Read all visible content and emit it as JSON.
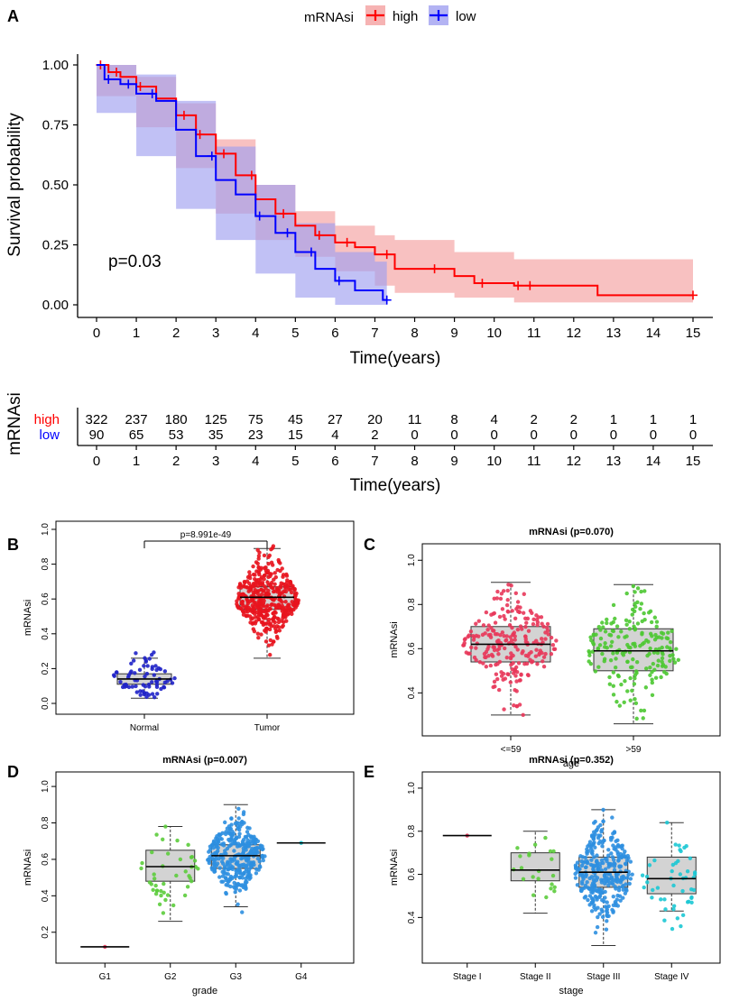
{
  "chart_data": [
    {
      "panel": "A",
      "type": "line",
      "subtype": "kaplan-meier",
      "legend_title": "mRNAsi",
      "legend_position": "top",
      "xlabel": "Time(years)",
      "ylabel": "Survival probability",
      "xlim": [
        0,
        15
      ],
      "ylim": [
        0,
        1
      ],
      "x_ticks": [
        "0",
        "1",
        "2",
        "3",
        "4",
        "5",
        "6",
        "7",
        "8",
        "9",
        "10",
        "11",
        "12",
        "13",
        "14",
        "15"
      ],
      "y_ticks": [
        "0.00",
        "0.25",
        "0.50",
        "0.75",
        "1.00"
      ],
      "annotation": "p=0.03",
      "series": [
        {
          "name": "high",
          "color": "#ff0000",
          "fill": "#f4a0a0",
          "points": [
            [
              0,
              1.0
            ],
            [
              0.3,
              0.97
            ],
            [
              0.6,
              0.95
            ],
            [
              1.0,
              0.91
            ],
            [
              1.5,
              0.86
            ],
            [
              2.0,
              0.79
            ],
            [
              2.5,
              0.71
            ],
            [
              3.0,
              0.63
            ],
            [
              3.5,
              0.54
            ],
            [
              4.0,
              0.44
            ],
            [
              4.5,
              0.38
            ],
            [
              5.0,
              0.33
            ],
            [
              5.5,
              0.29
            ],
            [
              6.0,
              0.26
            ],
            [
              6.5,
              0.24
            ],
            [
              7.0,
              0.21
            ],
            [
              7.5,
              0.15
            ],
            [
              9.0,
              0.12
            ],
            [
              9.5,
              0.09
            ],
            [
              10.5,
              0.08
            ],
            [
              12.6,
              0.04
            ],
            [
              15.0,
              0.04
            ]
          ],
          "upper": [
            [
              0,
              1.0
            ],
            [
              1.0,
              0.95
            ],
            [
              2.0,
              0.84
            ],
            [
              3.0,
              0.69
            ],
            [
              4.0,
              0.5
            ],
            [
              5.0,
              0.39
            ],
            [
              6.0,
              0.33
            ],
            [
              7.0,
              0.29
            ],
            [
              7.5,
              0.27
            ],
            [
              9.0,
              0.22
            ],
            [
              10.5,
              0.19
            ],
            [
              12.6,
              0.19
            ],
            [
              15.0,
              0.19
            ]
          ],
          "lower": [
            [
              0,
              0.97
            ],
            [
              1.0,
              0.87
            ],
            [
              2.0,
              0.74
            ],
            [
              3.0,
              0.57
            ],
            [
              4.0,
              0.38
            ],
            [
              5.0,
              0.27
            ],
            [
              6.0,
              0.2
            ],
            [
              7.0,
              0.14
            ],
            [
              7.5,
              0.08
            ],
            [
              9.0,
              0.05
            ],
            [
              10.5,
              0.03
            ],
            [
              12.6,
              0.01
            ],
            [
              15.0,
              0.01
            ]
          ],
          "censor_x": [
            0.1,
            0.5,
            1.1,
            2.2,
            2.6,
            3.2,
            3.9,
            4.7,
            5.6,
            6.3,
            7.3,
            8.5,
            9.7,
            10.6,
            10.9,
            15.0
          ]
        },
        {
          "name": "low",
          "color": "#0000ff",
          "fill": "#a0a0f0",
          "points": [
            [
              0,
              1.0
            ],
            [
              0.2,
              0.94
            ],
            [
              0.6,
              0.92
            ],
            [
              1.0,
              0.88
            ],
            [
              1.5,
              0.85
            ],
            [
              2.0,
              0.73
            ],
            [
              2.5,
              0.62
            ],
            [
              3.0,
              0.52
            ],
            [
              3.5,
              0.46
            ],
            [
              4.0,
              0.37
            ],
            [
              4.5,
              0.3
            ],
            [
              5.0,
              0.22
            ],
            [
              5.5,
              0.15
            ],
            [
              6.0,
              0.1
            ],
            [
              6.5,
              0.06
            ],
            [
              7.0,
              0.06
            ],
            [
              7.2,
              0.02
            ],
            [
              7.3,
              0.02
            ]
          ],
          "upper": [
            [
              0,
              1.0
            ],
            [
              1.0,
              0.96
            ],
            [
              2.0,
              0.85
            ],
            [
              3.0,
              0.66
            ],
            [
              4.0,
              0.5
            ],
            [
              5.0,
              0.34
            ],
            [
              6.0,
              0.22
            ],
            [
              7.0,
              0.18
            ],
            [
              7.3,
              0.15
            ]
          ],
          "lower": [
            [
              0,
              0.88
            ],
            [
              1.0,
              0.8
            ],
            [
              2.0,
              0.62
            ],
            [
              3.0,
              0.4
            ],
            [
              4.0,
              0.27
            ],
            [
              5.0,
              0.13
            ],
            [
              6.0,
              0.03
            ],
            [
              7.0,
              0.0
            ],
            [
              7.3,
              0.0
            ]
          ],
          "censor_x": [
            0.3,
            0.8,
            1.4,
            2.9,
            4.1,
            4.8,
            5.4,
            6.1,
            7.3
          ]
        }
      ]
    },
    {
      "panel": "A-risk",
      "type": "table",
      "ylabel": "mRNAsi",
      "xlabel": "Time(years)",
      "x_ticks": [
        "0",
        "1",
        "2",
        "3",
        "4",
        "5",
        "6",
        "7",
        "8",
        "9",
        "10",
        "11",
        "12",
        "13",
        "14",
        "15"
      ],
      "rows": [
        {
          "name": "high",
          "color": "#ff0000",
          "values": [
            "322",
            "237",
            "180",
            "125",
            "75",
            "45",
            "27",
            "20",
            "11",
            "8",
            "4",
            "2",
            "2",
            "1",
            "1",
            "1"
          ]
        },
        {
          "name": "low",
          "color": "#0000ff",
          "values": [
            "90",
            "65",
            "53",
            "35",
            "23",
            "15",
            "4",
            "2",
            "0",
            "0",
            "0",
            "0",
            "0",
            "0",
            "0",
            "0"
          ]
        }
      ]
    },
    {
      "panel": "B",
      "type": "scatter",
      "subtype": "box-beeswarm",
      "title": "",
      "ylabel": "mRNAsi",
      "xlabel": "",
      "ylim": [
        0,
        1
      ],
      "y_ticks": [
        "0.0",
        "0.2",
        "0.4",
        "0.6",
        "0.8",
        "1.0"
      ],
      "categories": [
        "Normal",
        "Tumor"
      ],
      "colors": [
        "#1f22c8",
        "#e8141e"
      ],
      "boxes": [
        {
          "q1": 0.11,
          "median": 0.14,
          "q3": 0.17,
          "whisk_lo": 0.03,
          "whisk_hi": 0.26,
          "center": 0.15,
          "sd": 0.06,
          "n": 72,
          "min": 0.01,
          "max": 0.32
        },
        {
          "q1": 0.54,
          "median": 0.61,
          "q3": 0.67,
          "whisk_lo": 0.26,
          "whisk_hi": 0.89,
          "center": 0.61,
          "sd": 0.11,
          "n": 420,
          "min": 0.12,
          "max": 1.0
        }
      ],
      "annotation": "p=8.991e-49"
    },
    {
      "panel": "C",
      "type": "scatter",
      "subtype": "box-beeswarm",
      "title": "mRNAsi (p=0.070)",
      "ylabel": "mRNAsi",
      "xlabel": "age",
      "ylim": [
        0.23,
        1.05
      ],
      "y_ticks": [
        "0.4",
        "0.6",
        "0.8",
        "1.0"
      ],
      "categories": [
        "<=59",
        ">59"
      ],
      "colors": [
        "#e8375a",
        "#4cc832"
      ],
      "boxes": [
        {
          "q1": 0.54,
          "median": 0.62,
          "q3": 0.7,
          "whisk_lo": 0.3,
          "whisk_hi": 0.9,
          "center": 0.62,
          "sd": 0.11,
          "n": 230,
          "min": 0.25,
          "max": 1.0
        },
        {
          "q1": 0.5,
          "median": 0.59,
          "q3": 0.69,
          "whisk_lo": 0.26,
          "whisk_hi": 0.89,
          "center": 0.59,
          "sd": 0.12,
          "n": 190,
          "min": 0.26,
          "max": 0.89
        }
      ]
    },
    {
      "panel": "D",
      "type": "scatter",
      "subtype": "box-beeswarm",
      "title": "mRNAsi (p=0.007)",
      "ylabel": "mRNAsi",
      "xlabel": "grade",
      "ylim": [
        0.08,
        1.05
      ],
      "y_ticks": [
        "0.2",
        "0.4",
        "0.6",
        "0.8",
        "1.0"
      ],
      "categories": [
        "G1",
        "G2",
        "G3",
        "G4"
      ],
      "colors": [
        "#e8375a",
        "#5ccc3c",
        "#2e8fe0",
        "#1cc8d4"
      ],
      "boxes": [
        {
          "q1": 0.12,
          "median": 0.12,
          "q3": 0.12,
          "whisk_lo": 0.12,
          "whisk_hi": 0.12,
          "center": 0.12,
          "sd": 0,
          "n": 1,
          "min": 0.12,
          "max": 0.12
        },
        {
          "q1": 0.48,
          "median": 0.56,
          "q3": 0.65,
          "whisk_lo": 0.26,
          "whisk_hi": 0.78,
          "center": 0.56,
          "sd": 0.12,
          "n": 42,
          "min": 0.25,
          "max": 0.78
        },
        {
          "q1": 0.55,
          "median": 0.62,
          "q3": 0.68,
          "whisk_lo": 0.34,
          "whisk_hi": 0.9,
          "center": 0.62,
          "sd": 0.1,
          "n": 330,
          "min": 0.3,
          "max": 1.0
        },
        {
          "q1": 0.69,
          "median": 0.69,
          "q3": 0.69,
          "whisk_lo": 0.69,
          "whisk_hi": 0.69,
          "center": 0.69,
          "sd": 0,
          "n": 1,
          "min": 0.69,
          "max": 0.69
        }
      ]
    },
    {
      "panel": "E",
      "type": "scatter",
      "subtype": "box-beeswarm",
      "title": "mRNAsi (p=0.352)",
      "ylabel": "mRNAsi",
      "xlabel": "stage",
      "ylim": [
        0.23,
        1.05
      ],
      "y_ticks": [
        "0.4",
        "0.6",
        "0.8",
        "1.0"
      ],
      "categories": [
        "Stage I",
        "Stage II",
        "Stage III",
        "Stage IV"
      ],
      "colors": [
        "#e8375a",
        "#5ccc3c",
        "#2e8fe0",
        "#1cc8d4"
      ],
      "boxes": [
        {
          "q1": 0.78,
          "median": 0.78,
          "q3": 0.78,
          "whisk_lo": 0.78,
          "whisk_hi": 0.78,
          "center": 0.78,
          "sd": 0,
          "n": 1,
          "min": 0.78,
          "max": 0.78
        },
        {
          "q1": 0.57,
          "median": 0.62,
          "q3": 0.7,
          "whisk_lo": 0.42,
          "whisk_hi": 0.8,
          "center": 0.62,
          "sd": 0.09,
          "n": 22,
          "min": 0.42,
          "max": 0.8
        },
        {
          "q1": 0.54,
          "median": 0.61,
          "q3": 0.68,
          "whisk_lo": 0.27,
          "whisk_hi": 0.9,
          "center": 0.61,
          "sd": 0.11,
          "n": 320,
          "min": 0.26,
          "max": 1.0
        },
        {
          "q1": 0.51,
          "median": 0.58,
          "q3": 0.68,
          "whisk_lo": 0.43,
          "whisk_hi": 0.84,
          "center": 0.58,
          "sd": 0.11,
          "n": 48,
          "min": 0.27,
          "max": 0.84
        }
      ]
    }
  ],
  "panel_labels": [
    "A",
    "B",
    "C",
    "D",
    "E"
  ]
}
